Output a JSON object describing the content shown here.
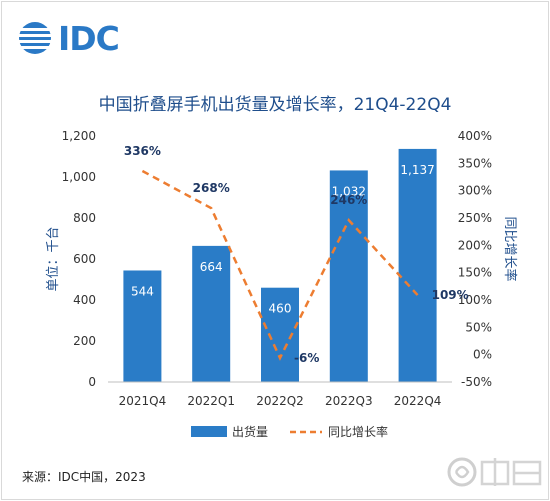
{
  "brand": {
    "logo_text": "IDC"
  },
  "chart_data": {
    "type": "bar",
    "title": "中国折叠屏手机出货量及增长率，21Q4-22Q4",
    "categories": [
      "2021Q4",
      "2022Q1",
      "2022Q2",
      "2022Q3",
      "2022Q4"
    ],
    "series": [
      {
        "name": "出货量",
        "type": "bar",
        "axis": "left",
        "values": [
          544,
          664,
          460,
          1032,
          1137
        ],
        "labels": [
          "544",
          "664",
          "460",
          "1,032",
          "1,137"
        ]
      },
      {
        "name": "同比增长率",
        "type": "line",
        "axis": "right",
        "values": [
          336,
          268,
          -6,
          246,
          109
        ],
        "labels": [
          "336%",
          "268%",
          "-6%",
          "246%",
          "109%"
        ]
      }
    ],
    "ylabel": "单位：千台",
    "y2label": "同比增长率",
    "ylim": [
      0,
      1200
    ],
    "y_ticks": [
      "0",
      "200",
      "400",
      "600",
      "800",
      "1,000",
      "1,200"
    ],
    "y2lim": [
      -50,
      400
    ],
    "y2_ticks": [
      "-50%",
      "0%",
      "50%",
      "100%",
      "150%",
      "200%",
      "250%",
      "300%",
      "350%",
      "400%"
    ],
    "legend_position": "bottom",
    "colors": {
      "bar": "#2a7cc7",
      "line": "#ed7d31",
      "label_dark": "#1f3864"
    }
  },
  "footer": {
    "source": "来源：IDC中国，2023"
  }
}
